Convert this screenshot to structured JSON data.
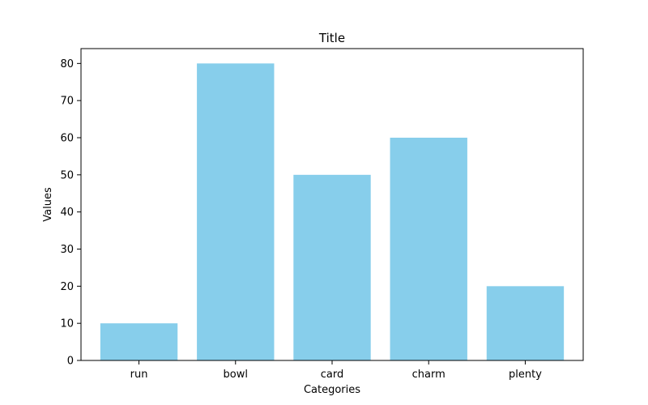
{
  "chart_data": {
    "type": "bar",
    "title": "Title",
    "xlabel": "Categories",
    "ylabel": "Values",
    "categories": [
      "run",
      "bowl",
      "card",
      "charm",
      "plenty"
    ],
    "values": [
      10,
      80,
      50,
      60,
      20
    ],
    "ylim": [
      0,
      84
    ],
    "yticks": [
      0,
      10,
      20,
      30,
      40,
      50,
      60,
      70,
      80
    ],
    "grid": false,
    "bar_color": "#87CEEB",
    "axis_color": "#000000"
  }
}
